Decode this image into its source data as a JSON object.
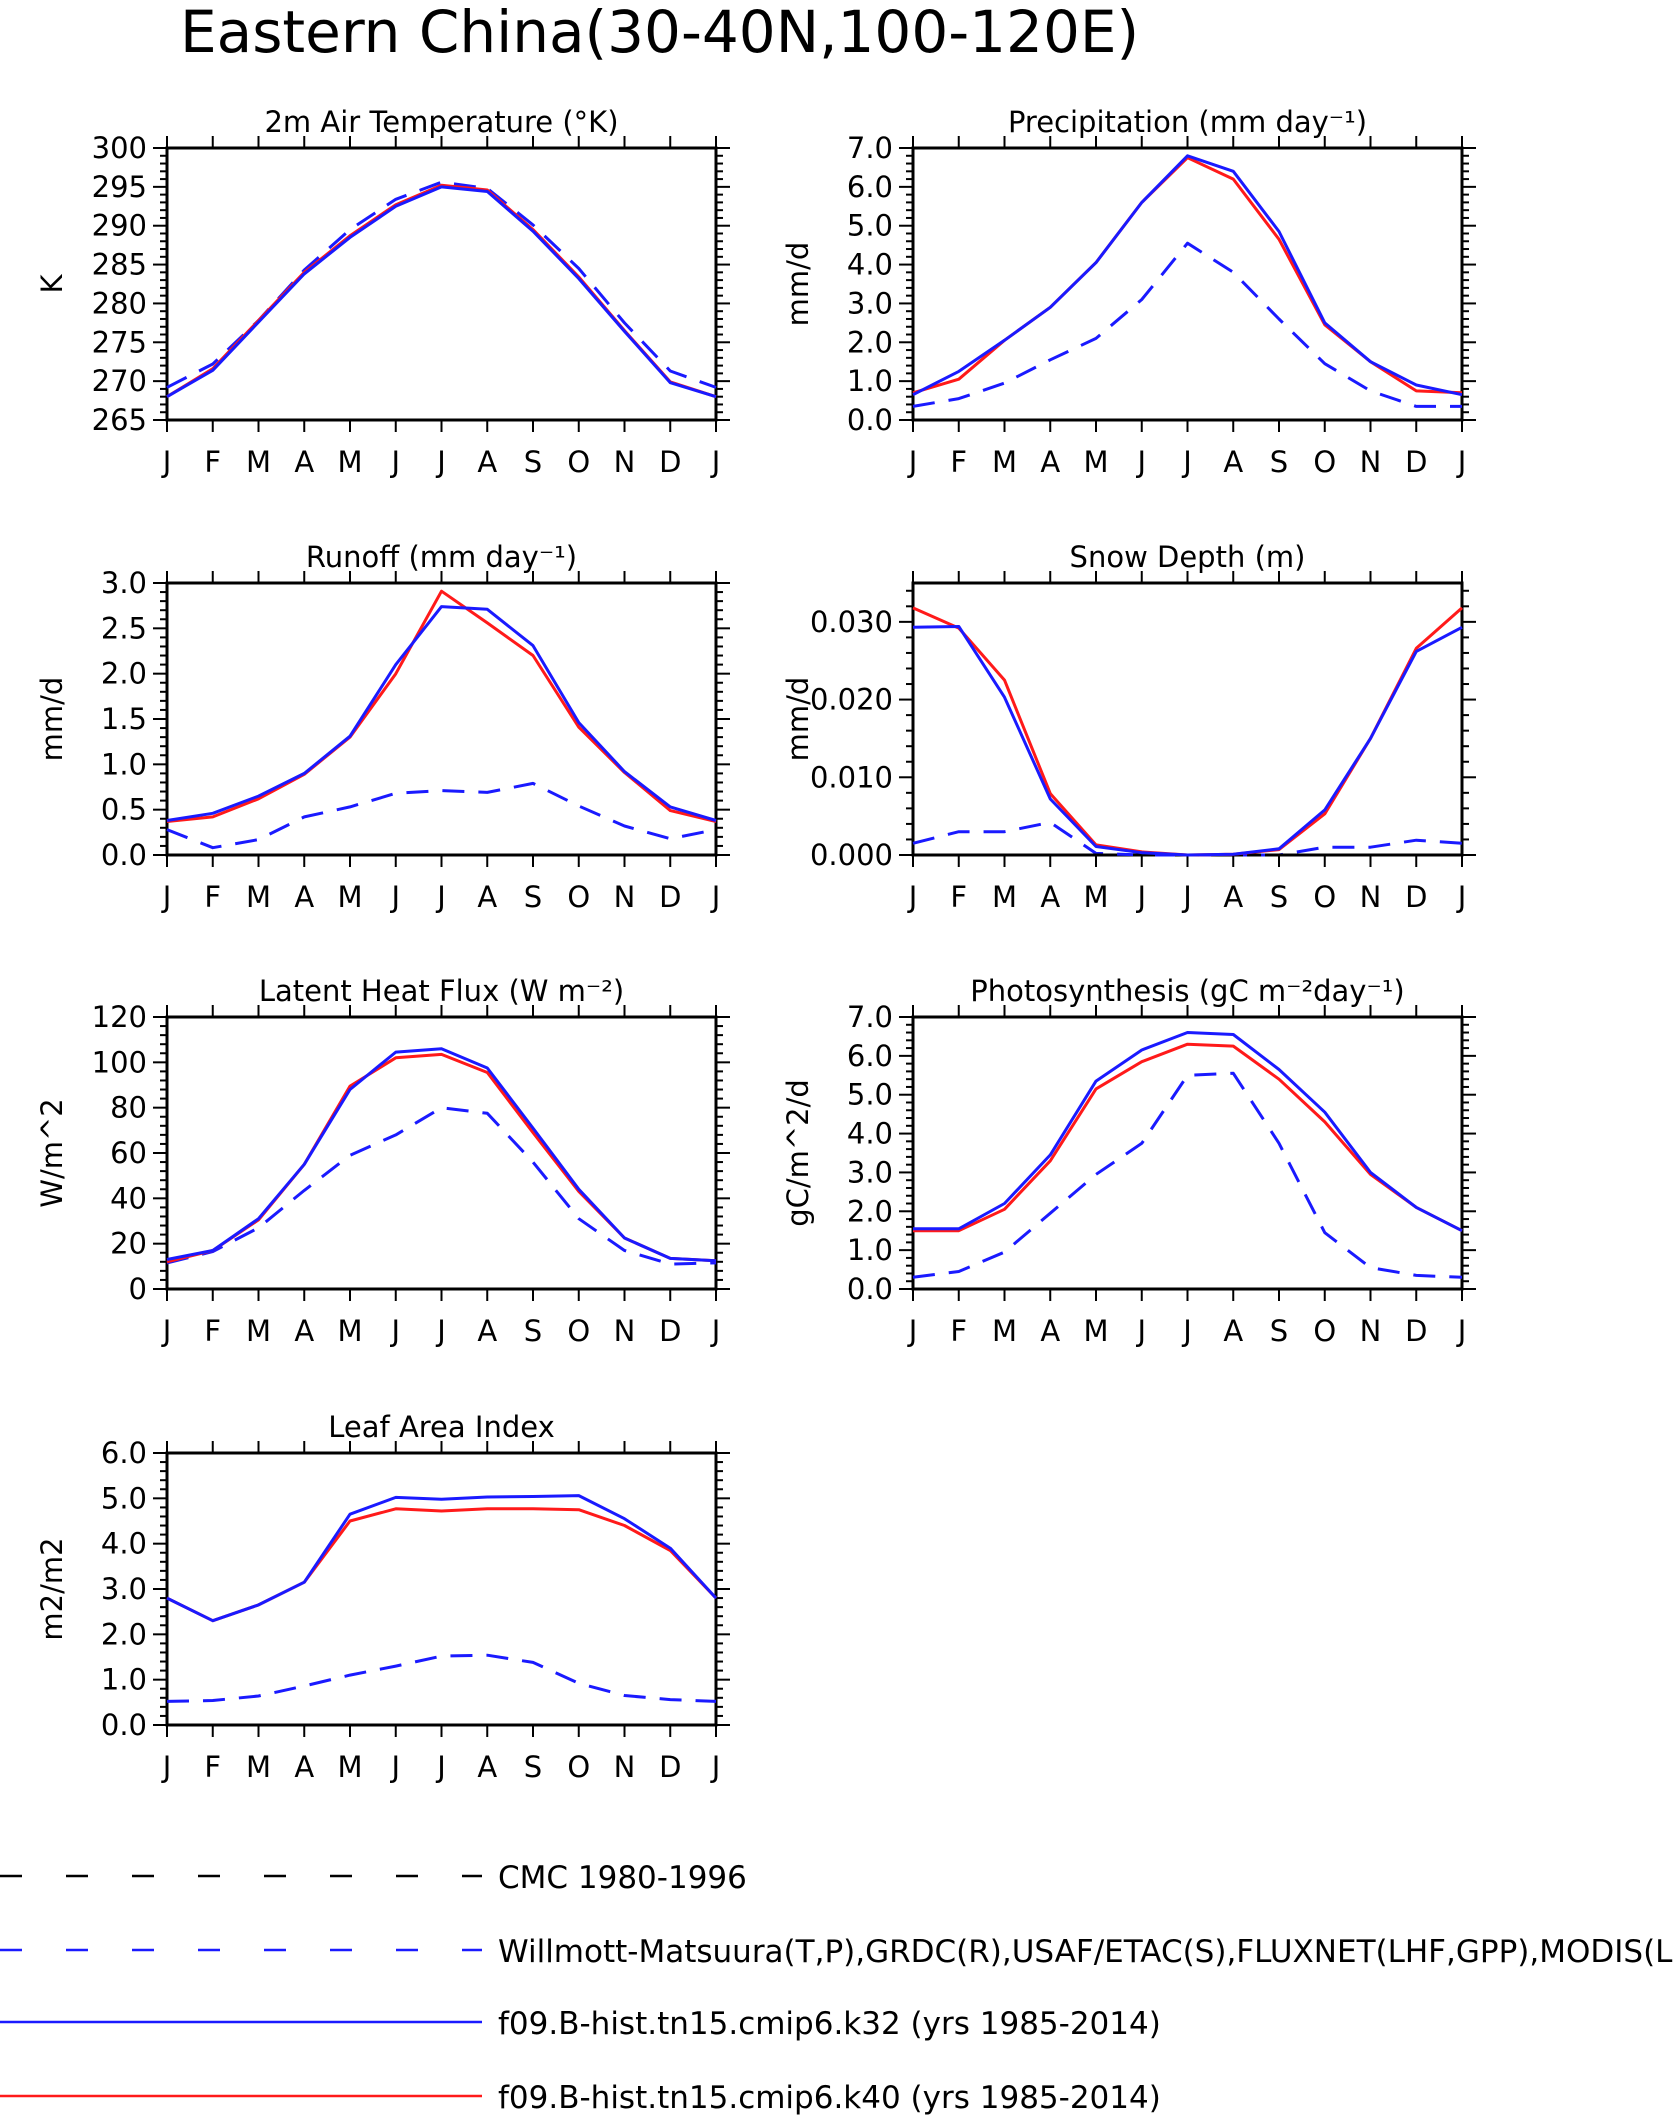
{
  "figure_title": "Eastern China(30-40N,100-120E)",
  "colors": {
    "k32": "#1a1aff",
    "k40": "#ff1a1a",
    "obs": "#1a1aff",
    "cmc": "#000000",
    "axis": "#000000"
  },
  "legend": {
    "placement": "bottom",
    "entries": [
      {
        "label": "CMC 1980-1996",
        "color": "#000000",
        "style": "dashed"
      },
      {
        "label": "Willmott-Matsuura(T,P),GRDC(R),USAF/ETAC(S),FLUXNET(LHF,GPP),MODIS(L",
        "color": "#1a1aff",
        "style": "dashed"
      },
      {
        "label": "f09.B-hist.tn15.cmip6.k32 (yrs 1985-2014)",
        "color": "#1a1aff",
        "style": "solid"
      },
      {
        "label": "f09.B-hist.tn15.cmip6.k40 (yrs 1985-2014)",
        "color": "#ff1a1a",
        "style": "solid"
      }
    ]
  },
  "chart_data": [
    {
      "type": "line",
      "title": "2m Air Temperature (°K)",
      "ylabel": "K",
      "categories": [
        "J",
        "F",
        "M",
        "A",
        "M",
        "J",
        "J",
        "A",
        "S",
        "O",
        "N",
        "D",
        "J"
      ],
      "ylim": [
        265,
        300
      ],
      "yticks": [
        265,
        270,
        275,
        280,
        285,
        290,
        295,
        300
      ],
      "ytick_labels": [
        "265",
        "270",
        "275",
        "280",
        "285",
        "290",
        "295",
        "300"
      ],
      "series": [
        {
          "name": "CMC 1980-1996",
          "values": [
            null,
            null,
            null,
            null,
            null,
            null,
            null,
            null,
            null,
            null,
            null,
            null,
            null
          ]
        },
        {
          "name": "Willmott-Matsuura(T,P),GRDC(R),USAF/ETAC(S),FLUXNET(LHF,GPP),MODIS(L",
          "values": [
            269.2,
            272.2,
            277.8,
            284.3,
            289.5,
            293.4,
            295.6,
            294.8,
            290.1,
            284.5,
            277.5,
            271.3,
            269.2
          ]
        },
        {
          "name": "f09.B-hist.tn15.cmip6.k32 (yrs 1985-2014)",
          "values": [
            268.0,
            271.4,
            277.6,
            283.8,
            288.5,
            292.5,
            295.0,
            294.4,
            289.3,
            283.2,
            276.4,
            269.8,
            268.0
          ]
        },
        {
          "name": "f09.B-hist.tn15.cmip6.k40 (yrs 1985-2014)",
          "values": [
            268.0,
            271.6,
            277.8,
            284.0,
            288.7,
            292.7,
            295.2,
            294.6,
            289.5,
            283.4,
            276.5,
            269.9,
            268.0
          ]
        }
      ]
    },
    {
      "type": "line",
      "title": "Precipitation (mm day⁻¹)",
      "ylabel": "mm/d",
      "categories": [
        "J",
        "F",
        "M",
        "A",
        "M",
        "J",
        "J",
        "A",
        "S",
        "O",
        "N",
        "D",
        "J"
      ],
      "ylim": [
        0,
        7
      ],
      "yticks": [
        0,
        1,
        2,
        3,
        4,
        5,
        6,
        7
      ],
      "ytick_labels": [
        "0.0",
        "1.0",
        "2.0",
        "3.0",
        "4.0",
        "5.0",
        "6.0",
        "7.0"
      ],
      "series": [
        {
          "name": "CMC 1980-1996",
          "values": [
            null,
            null,
            null,
            null,
            null,
            null,
            null,
            null,
            null,
            null,
            null,
            null,
            null
          ]
        },
        {
          "name": "Willmott-Matsuura(T,P),GRDC(R),USAF/ETAC(S),FLUXNET(LHF,GPP),MODIS(L",
          "values": [
            0.35,
            0.55,
            0.95,
            1.55,
            2.1,
            3.1,
            4.55,
            3.8,
            2.6,
            1.45,
            0.75,
            0.35,
            0.35
          ]
        },
        {
          "name": "f09.B-hist.tn15.cmip6.k32 (yrs 1985-2014)",
          "values": [
            0.65,
            1.25,
            2.05,
            2.9,
            4.05,
            5.6,
            6.8,
            6.4,
            4.85,
            2.5,
            1.5,
            0.9,
            0.65
          ]
        },
        {
          "name": "f09.B-hist.tn15.cmip6.k40 (yrs 1985-2014)",
          "values": [
            0.7,
            1.05,
            2.05,
            2.9,
            4.05,
            5.6,
            6.75,
            6.2,
            4.65,
            2.45,
            1.5,
            0.75,
            0.7
          ]
        }
      ]
    },
    {
      "type": "line",
      "title": "Runoff (mm day⁻¹)",
      "ylabel": "mm/d",
      "categories": [
        "J",
        "F",
        "M",
        "A",
        "M",
        "J",
        "J",
        "A",
        "S",
        "O",
        "N",
        "D",
        "J"
      ],
      "ylim": [
        0,
        3
      ],
      "yticks": [
        0,
        0.5,
        1,
        1.5,
        2,
        2.5,
        3
      ],
      "ytick_labels": [
        "0.0",
        "0.5",
        "1.0",
        "1.5",
        "2.0",
        "2.5",
        "3.0"
      ],
      "series": [
        {
          "name": "CMC 1980-1996",
          "values": [
            null,
            null,
            null,
            null,
            null,
            null,
            null,
            null,
            null,
            null,
            null,
            null,
            null
          ]
        },
        {
          "name": "Willmott-Matsuura(T,P),GRDC(R),USAF/ETAC(S),FLUXNET(LHF,GPP),MODIS(L",
          "values": [
            0.28,
            0.08,
            0.17,
            0.42,
            0.53,
            0.68,
            0.71,
            0.69,
            0.79,
            0.54,
            0.32,
            0.18,
            0.28
          ]
        },
        {
          "name": "f09.B-hist.tn15.cmip6.k32 (yrs 1985-2014)",
          "values": [
            0.38,
            0.46,
            0.65,
            0.9,
            1.31,
            2.1,
            2.74,
            2.71,
            2.31,
            1.46,
            0.92,
            0.53,
            0.38
          ]
        },
        {
          "name": "f09.B-hist.tn15.cmip6.k40 (yrs 1985-2014)",
          "values": [
            0.37,
            0.42,
            0.62,
            0.89,
            1.3,
            2.0,
            2.91,
            2.56,
            2.2,
            1.41,
            0.91,
            0.49,
            0.37
          ]
        }
      ]
    },
    {
      "type": "line",
      "title": "Snow Depth (m)",
      "ylabel": "mm/d",
      "categories": [
        "J",
        "F",
        "M",
        "A",
        "M",
        "J",
        "J",
        "A",
        "S",
        "O",
        "N",
        "D",
        "J"
      ],
      "ylim": [
        0,
        0.035
      ],
      "yticks": [
        0,
        0.01,
        0.02,
        0.03
      ],
      "ytick_labels": [
        "0.000",
        "0.010",
        "0.020",
        "0.030"
      ],
      "series": [
        {
          "name": "CMC 1980-1996",
          "values": [
            0.0,
            0.0,
            0.0,
            0.0,
            0.0,
            0.0,
            0.0,
            0.0,
            0.0,
            0.0,
            0.0,
            0.0,
            0.0
          ]
        },
        {
          "name": "Willmott-Matsuura(T,P),GRDC(R),USAF/ETAC(S),FLUXNET(LHF,GPP),MODIS(L",
          "values": [
            0.0015,
            0.003,
            0.003,
            0.0042,
            0.0002,
            0.0,
            0.0,
            0.0,
            0.0,
            0.001,
            0.001,
            0.0019,
            0.0015
          ]
        },
        {
          "name": "f09.B-hist.tn15.cmip6.k32 (yrs 1985-2014)",
          "values": [
            0.0293,
            0.0294,
            0.0203,
            0.0072,
            0.0011,
            0.0003,
            0.0,
            0.0001,
            0.0008,
            0.0058,
            0.015,
            0.0262,
            0.0293
          ]
        },
        {
          "name": "f09.B-hist.tn15.cmip6.k40 (yrs 1985-2014)",
          "values": [
            0.0318,
            0.0292,
            0.0225,
            0.0079,
            0.0013,
            0.0004,
            0.0,
            0.0001,
            0.0007,
            0.0053,
            0.015,
            0.0266,
            0.0318
          ]
        }
      ]
    },
    {
      "type": "line",
      "title": "Latent Heat Flux (W m⁻²)",
      "ylabel": "W/m^2",
      "categories": [
        "J",
        "F",
        "M",
        "A",
        "M",
        "J",
        "J",
        "A",
        "S",
        "O",
        "N",
        "D",
        "J"
      ],
      "ylim": [
        0,
        120
      ],
      "yticks": [
        0,
        20,
        40,
        60,
        80,
        100,
        120
      ],
      "ytick_labels": [
        "0",
        "20",
        "40",
        "60",
        "80",
        "100",
        "120"
      ],
      "series": [
        {
          "name": "CMC 1980-1996",
          "values": [
            null,
            null,
            null,
            null,
            null,
            null,
            null,
            null,
            null,
            null,
            null,
            null,
            null
          ]
        },
        {
          "name": "Willmott-Matsuura(T,P),GRDC(R),USAF/ETAC(S),FLUXNET(LHF,GPP),MODIS(L",
          "values": [
            11.5,
            16.5,
            27.0,
            43.5,
            59.0,
            68.0,
            80.0,
            77.5,
            56.0,
            31.0,
            17.0,
            11.0,
            11.5
          ]
        },
        {
          "name": "f09.B-hist.tn15.cmip6.k32 (yrs 1985-2014)",
          "values": [
            13.0,
            17.0,
            31.0,
            55.0,
            88.0,
            104.5,
            106.0,
            97.5,
            71.0,
            44.0,
            22.5,
            13.5,
            12.5
          ]
        },
        {
          "name": "f09.B-hist.tn15.cmip6.k40 (yrs 1985-2014)",
          "values": [
            12.0,
            17.0,
            30.5,
            55.0,
            89.5,
            102.0,
            103.5,
            95.5,
            69.0,
            43.0,
            22.5,
            13.5,
            12.5
          ]
        }
      ]
    },
    {
      "type": "line",
      "title": "Photosynthesis (gC m⁻²day⁻¹)",
      "ylabel": "gC/m^2/d",
      "categories": [
        "J",
        "F",
        "M",
        "A",
        "M",
        "J",
        "J",
        "A",
        "S",
        "O",
        "N",
        "D",
        "J"
      ],
      "ylim": [
        0,
        7
      ],
      "yticks": [
        0,
        1,
        2,
        3,
        4,
        5,
        6,
        7
      ],
      "ytick_labels": [
        "0.0",
        "1.0",
        "2.0",
        "3.0",
        "4.0",
        "5.0",
        "6.0",
        "7.0"
      ],
      "series": [
        {
          "name": "CMC 1980-1996",
          "values": [
            null,
            null,
            null,
            null,
            null,
            null,
            null,
            null,
            null,
            null,
            null,
            null,
            null
          ]
        },
        {
          "name": "Willmott-Matsuura(T,P),GRDC(R),USAF/ETAC(S),FLUXNET(LHF,GPP),MODIS(L",
          "values": [
            0.3,
            0.45,
            0.95,
            1.95,
            2.95,
            3.75,
            5.5,
            5.55,
            3.75,
            1.45,
            0.55,
            0.35,
            0.3
          ]
        },
        {
          "name": "f09.B-hist.tn15.cmip6.k32 (yrs 1985-2014)",
          "values": [
            1.55,
            1.55,
            2.2,
            3.45,
            5.35,
            6.15,
            6.6,
            6.55,
            5.65,
            4.55,
            3.0,
            2.1,
            1.5
          ]
        },
        {
          "name": "f09.B-hist.tn15.cmip6.k40 (yrs 1985-2014)",
          "values": [
            1.5,
            1.5,
            2.05,
            3.3,
            5.15,
            5.85,
            6.3,
            6.25,
            5.4,
            4.3,
            2.95,
            2.1,
            1.5
          ]
        }
      ]
    },
    {
      "type": "line",
      "title": "Leaf Area Index",
      "ylabel": "m2/m2",
      "categories": [
        "J",
        "F",
        "M",
        "A",
        "M",
        "J",
        "J",
        "A",
        "S",
        "O",
        "N",
        "D",
        "J"
      ],
      "ylim": [
        0,
        6
      ],
      "yticks": [
        0,
        1,
        2,
        3,
        4,
        5,
        6
      ],
      "ytick_labels": [
        "0.0",
        "1.0",
        "2.0",
        "3.0",
        "4.0",
        "5.0",
        "6.0"
      ],
      "series": [
        {
          "name": "CMC 1980-1996",
          "values": [
            null,
            null,
            null,
            null,
            null,
            null,
            null,
            null,
            null,
            null,
            null,
            null,
            null
          ]
        },
        {
          "name": "Willmott-Matsuura(T,P),GRDC(R),USAF/ETAC(S),FLUXNET(LHF,GPP),MODIS(L",
          "values": [
            0.52,
            0.54,
            0.64,
            0.86,
            1.1,
            1.3,
            1.52,
            1.54,
            1.38,
            0.92,
            0.65,
            0.56,
            0.52
          ]
        },
        {
          "name": "f09.B-hist.tn15.cmip6.k32 (yrs 1985-2014)",
          "values": [
            2.8,
            2.3,
            2.65,
            3.15,
            4.65,
            5.02,
            4.98,
            5.03,
            5.04,
            5.06,
            4.55,
            3.9,
            2.8
          ]
        },
        {
          "name": "f09.B-hist.tn15.cmip6.k40 (yrs 1985-2014)",
          "values": [
            2.8,
            2.3,
            2.65,
            3.15,
            4.5,
            4.77,
            4.72,
            4.77,
            4.77,
            4.75,
            4.4,
            3.85,
            2.8
          ]
        }
      ]
    }
  ]
}
